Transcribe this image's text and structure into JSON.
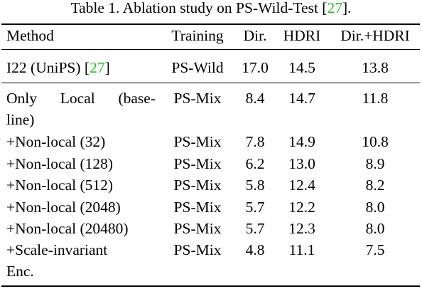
{
  "caption": {
    "text_before": "Table 1. Ablation study on PS-Wild-Test [",
    "cite": "27",
    "text_after": "]."
  },
  "header": {
    "method": "Method",
    "training": "Training",
    "dir": "Dir.",
    "hdri": "HDRI",
    "both": "Dir.+HDRI"
  },
  "rows": [
    {
      "method": "I22 (UniPS) [",
      "method_cite": "27",
      "method_after": "]",
      "training": "PS-Wild",
      "dir": "17.0",
      "hdri": "14.5",
      "both": "13.8"
    },
    {
      "method_line1": "Only Local (base-",
      "method_line2": "line)",
      "training": "PS-Mix",
      "dir": "8.4",
      "hdri": "14.7",
      "both": "11.8"
    },
    {
      "method": "+Non-local (32)",
      "training": "PS-Mix",
      "dir": "7.8",
      "hdri": "14.9",
      "both": "10.8"
    },
    {
      "method": "+Non-local (128)",
      "training": "PS-Mix",
      "dir": "6.2",
      "hdri": "13.0",
      "both": "8.9"
    },
    {
      "method": "+Non-local (512)",
      "training": "PS-Mix",
      "dir": "5.8",
      "hdri": "12.4",
      "both": "8.2"
    },
    {
      "method": "+Non-local (2048)",
      "training": "PS-Mix",
      "dir": "5.7",
      "hdri": "12.2",
      "both": "8.0"
    },
    {
      "method": "+Non-local (20480)",
      "training": "PS-Mix",
      "dir": "5.7",
      "hdri": "12.3",
      "both": "8.0"
    },
    {
      "method_line1": "+Scale-invariant",
      "method_line2": "Enc.",
      "training": "PS-Mix",
      "dir": "4.8",
      "hdri": "11.1",
      "both": "7.5"
    }
  ],
  "colors": {
    "citation": "#22c322",
    "text": "#000000",
    "background": "#ffffff"
  }
}
